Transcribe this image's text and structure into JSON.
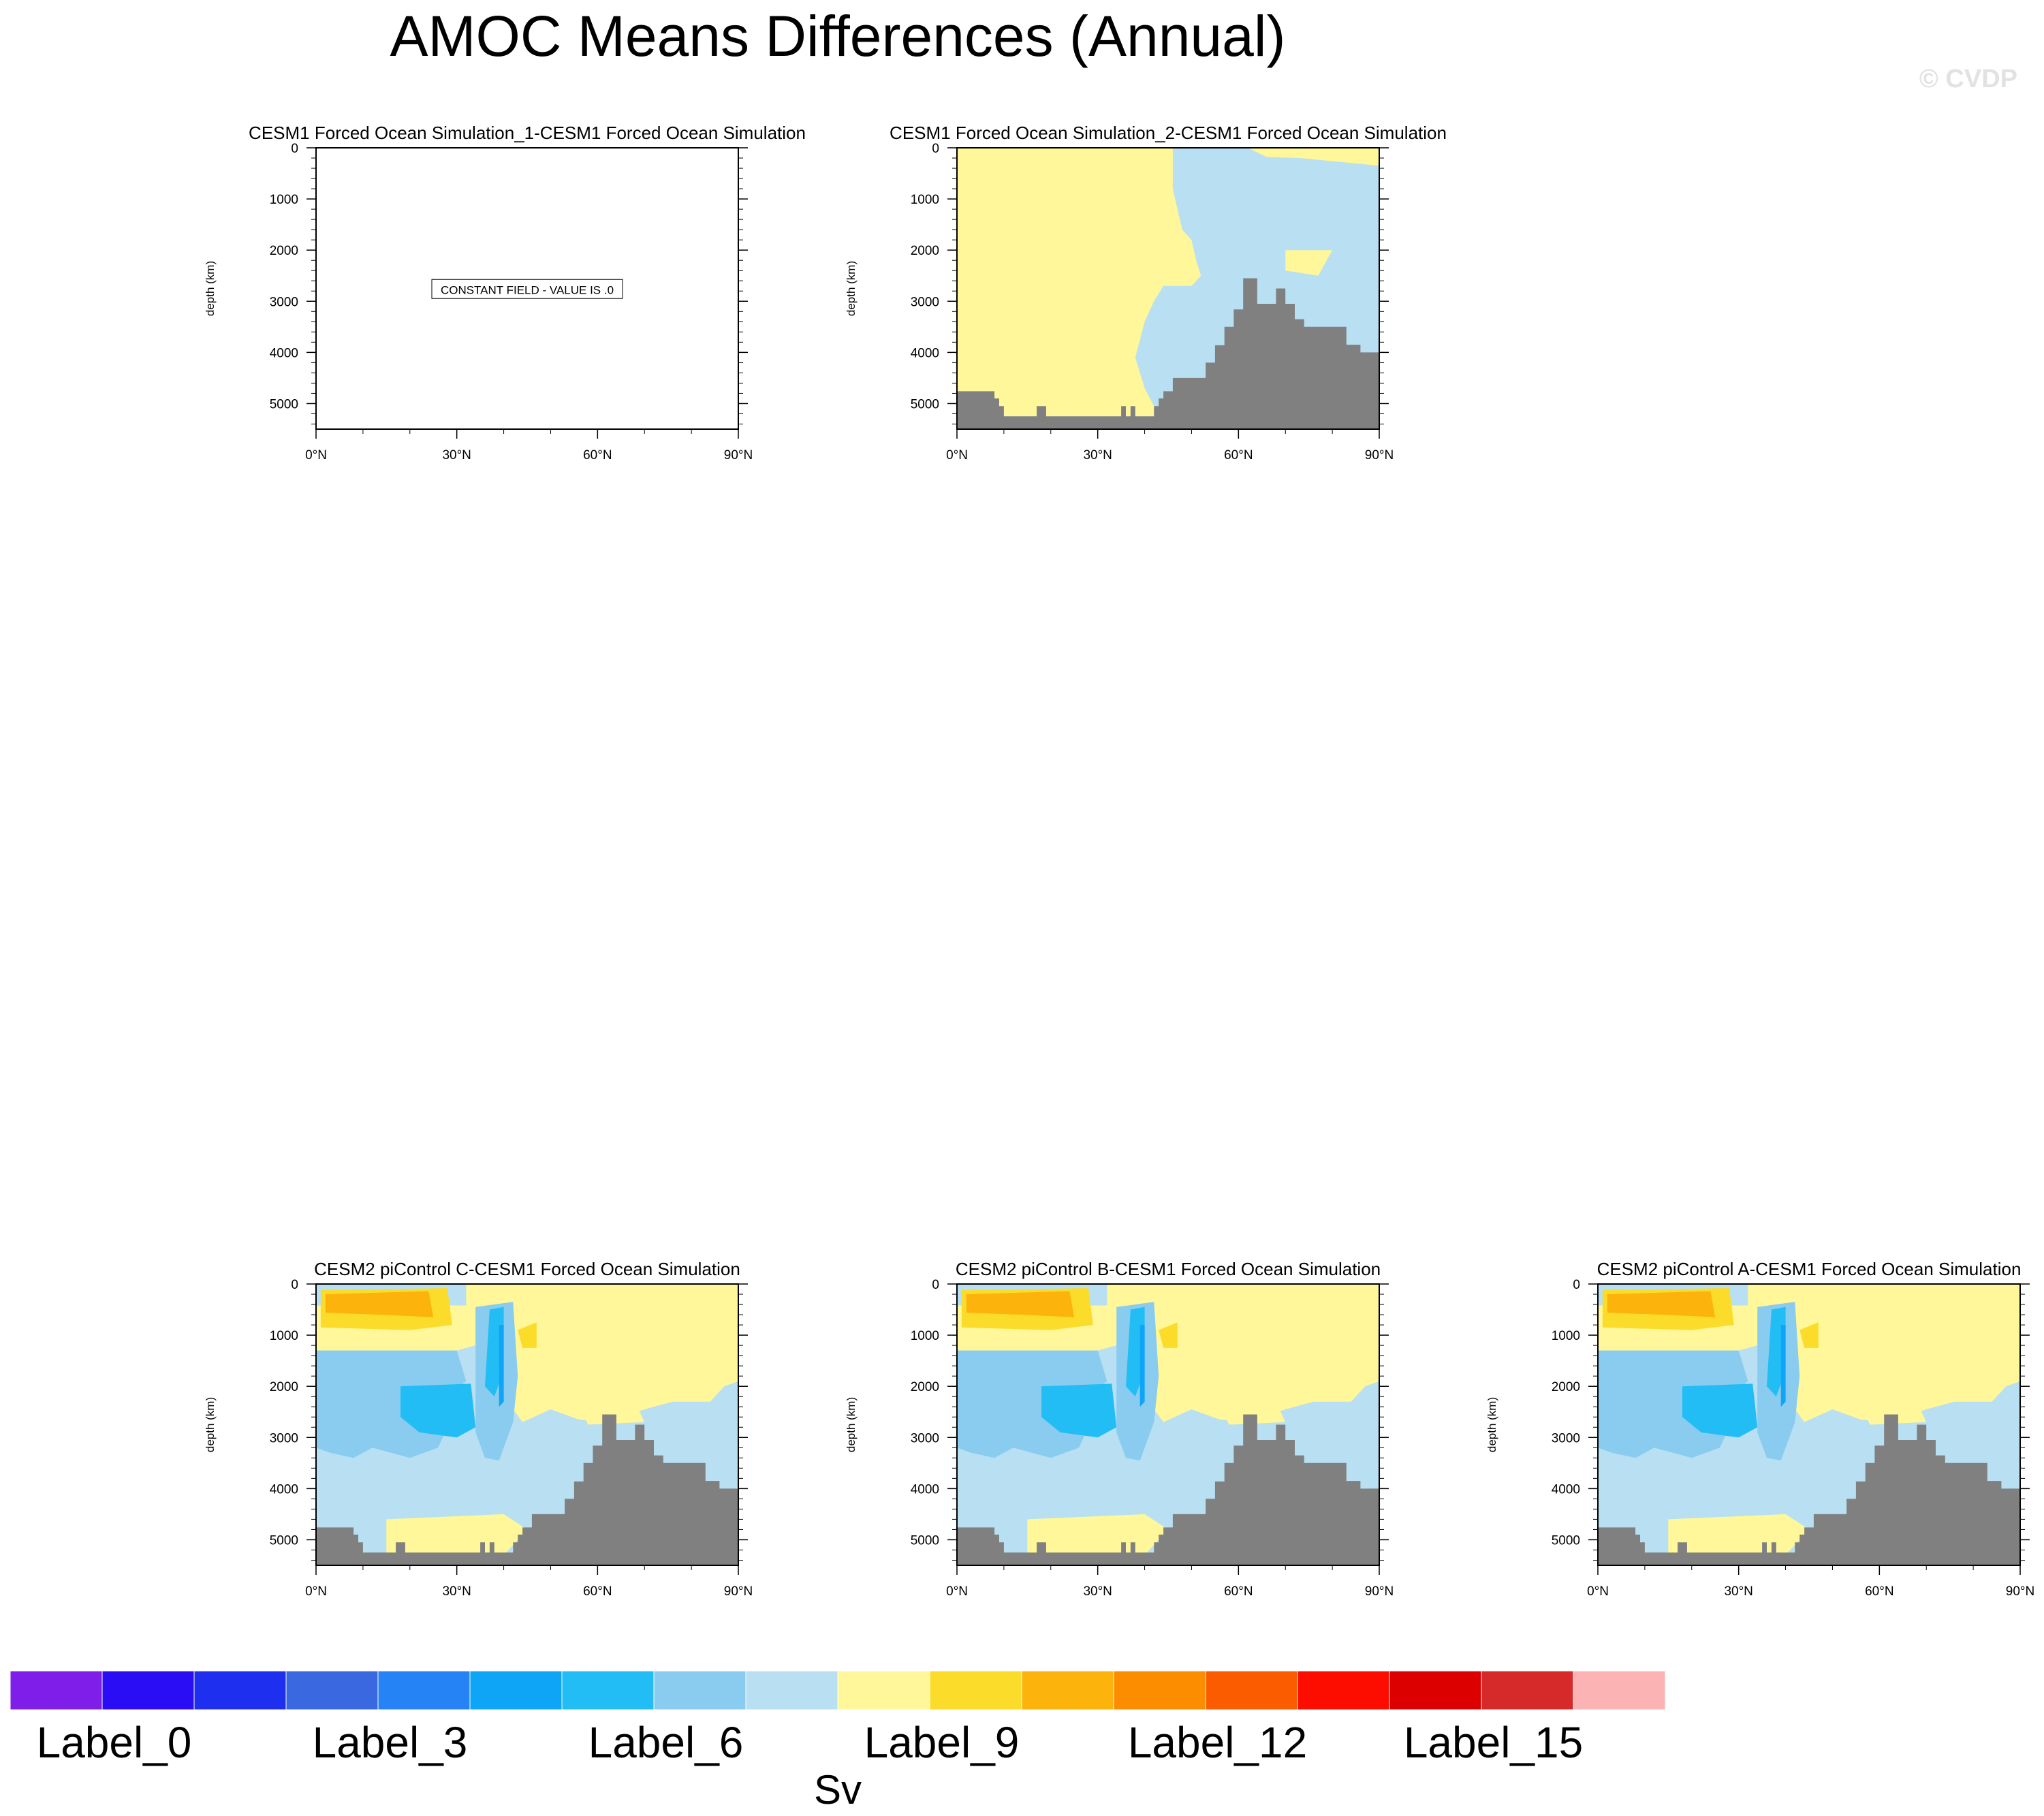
{
  "title": "AMOC Means Differences (Annual)",
  "watermark": "© CVDP",
  "colors": {
    "land": "#808080",
    "frame": "#000000",
    "palette": [
      "#7f1de9",
      "#2a0df5",
      "#1f2ff0",
      "#3a68e0",
      "#2683f5",
      "#0ea5f7",
      "#22bdf5",
      "#89ccef",
      "#b8dff2",
      "#fff799",
      "#fcdc2a",
      "#fcb30c",
      "#fc8c00",
      "#fc5c00",
      "#fc0d00",
      "#dc0000",
      "#d62a2a",
      "#fcb3b3"
    ]
  },
  "colorbar": {
    "labels": [
      "Label_0",
      "Label_3",
      "Label_6",
      "Label_9",
      "Label_12",
      "Label_15"
    ],
    "units": "Sv"
  },
  "chart_data": [
    {
      "type": "heatmap",
      "title": "CESM1 Forced Ocean Simulation_1-CESM1 Forced Ocean Simulation",
      "xlabel": "",
      "ylabel": "depth (km)",
      "xlim": [
        0,
        90
      ],
      "ylim": [
        0,
        5500
      ],
      "xticks": [
        "0°N",
        "30°N",
        "60°N",
        "90°N"
      ],
      "yticks": [
        "0",
        "1000",
        "2000",
        "3000",
        "4000",
        "5000"
      ],
      "annotation": "CONSTANT FIELD - VALUE IS .0",
      "field": "constant"
    },
    {
      "type": "heatmap",
      "title": "CESM1 Forced Ocean Simulation_2-CESM1 Forced Ocean Simulation",
      "xlabel": "",
      "ylabel": "depth (km)",
      "xlim": [
        0,
        90
      ],
      "ylim": [
        0,
        5500
      ],
      "xticks": [
        "0°N",
        "30°N",
        "60°N",
        "90°N"
      ],
      "yticks": [
        "0",
        "1000",
        "2000",
        "3000",
        "4000",
        "5000"
      ],
      "field": "small-difference"
    },
    {
      "type": "heatmap",
      "title": "CESM2 piControl C-CESM1 Forced Ocean Simulation",
      "xlabel": "",
      "ylabel": "depth (km)",
      "xlim": [
        0,
        90
      ],
      "ylim": [
        0,
        5500
      ],
      "xticks": [
        "0°N",
        "30°N",
        "60°N",
        "90°N"
      ],
      "yticks": [
        "0",
        "1000",
        "2000",
        "3000",
        "4000",
        "5000"
      ],
      "field": "full-difference"
    },
    {
      "type": "heatmap",
      "title": "CESM2 piControl B-CESM1 Forced Ocean Simulation",
      "xlabel": "",
      "ylabel": "depth (km)",
      "xlim": [
        0,
        90
      ],
      "ylim": [
        0,
        5500
      ],
      "xticks": [
        "0°N",
        "30°N",
        "60°N",
        "90°N"
      ],
      "yticks": [
        "0",
        "1000",
        "2000",
        "3000",
        "4000",
        "5000"
      ],
      "field": "full-difference"
    },
    {
      "type": "heatmap",
      "title": "CESM2 piControl A-CESM1 Forced Ocean Simulation",
      "xlabel": "",
      "ylabel": "depth (km)",
      "xlim": [
        0,
        90
      ],
      "ylim": [
        0,
        5500
      ],
      "xticks": [
        "0°N",
        "30°N",
        "60°N",
        "90°N"
      ],
      "yticks": [
        "0",
        "1000",
        "2000",
        "3000",
        "4000",
        "5000"
      ],
      "field": "full-difference"
    }
  ],
  "bathymetry": {
    "lat": [
      0,
      1,
      2,
      5,
      8,
      9,
      10,
      14,
      16,
      17,
      19,
      20,
      22,
      23,
      34,
      35,
      36,
      37,
      38,
      40,
      42,
      43,
      44,
      45,
      46,
      47,
      49,
      50,
      51,
      52,
      53,
      55,
      56,
      57,
      58,
      59,
      60,
      61,
      62,
      64,
      65,
      67,
      68,
      70,
      71,
      72,
      73,
      74,
      75,
      76,
      77,
      78,
      79,
      80,
      82,
      83,
      84,
      85,
      86,
      87,
      89,
      90
    ],
    "depth": [
      4760,
      4760,
      4760,
      4760,
      4900,
      5050,
      5250,
      5250,
      5250,
      5050,
      5250,
      5250,
      5250,
      5250,
      5250,
      5050,
      5250,
      5050,
      5250,
      5250,
      5050,
      4900,
      4760,
      4760,
      4500,
      4500,
      4500,
      4500,
      4500,
      4500,
      4200,
      3860,
      3860,
      3500,
      3500,
      3160,
      3160,
      2550,
      2550,
      3050,
      3050,
      3050,
      2750,
      3050,
      3050,
      3350,
      3350,
      3500,
      3500,
      3500,
      3500,
      3500,
      3500,
      3500,
      3500,
      3850,
      3850,
      3850,
      4000,
      4000,
      4000,
      4000
    ]
  }
}
